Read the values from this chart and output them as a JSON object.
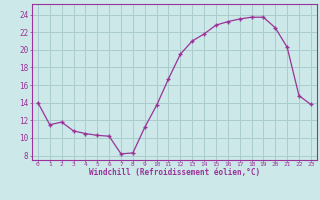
{
  "x": [
    0,
    1,
    2,
    3,
    4,
    5,
    6,
    7,
    8,
    9,
    10,
    11,
    12,
    13,
    14,
    15,
    16,
    17,
    18,
    19,
    20,
    21,
    22,
    23
  ],
  "y": [
    14,
    11.5,
    11.8,
    10.8,
    10.5,
    10.3,
    10.2,
    8.2,
    8.3,
    11.2,
    13.7,
    16.7,
    19.5,
    21.0,
    21.8,
    22.8,
    23.2,
    23.5,
    23.7,
    23.7,
    22.5,
    20.3,
    14.8,
    13.8
  ],
  "xlabel": "Windchill (Refroidissement éolien,°C)",
  "yticks": [
    8,
    10,
    12,
    14,
    16,
    18,
    20,
    22,
    24
  ],
  "xtick_labels": [
    "0",
    "1",
    "2",
    "3",
    "4",
    "5",
    "6",
    "7",
    "8",
    "9",
    "10",
    "11",
    "12",
    "13",
    "14",
    "15",
    "16",
    "17",
    "18",
    "19",
    "20",
    "21",
    "22",
    "23"
  ],
  "ylim": [
    7.5,
    25.2
  ],
  "xlim": [
    -0.5,
    23.5
  ],
  "line_color": "#993399",
  "marker": "+",
  "bg_color": "#cce8e8",
  "grid_color": "#aacccc",
  "axis_color": "#993399",
  "label_color": "#993399",
  "tick_color": "#993399"
}
